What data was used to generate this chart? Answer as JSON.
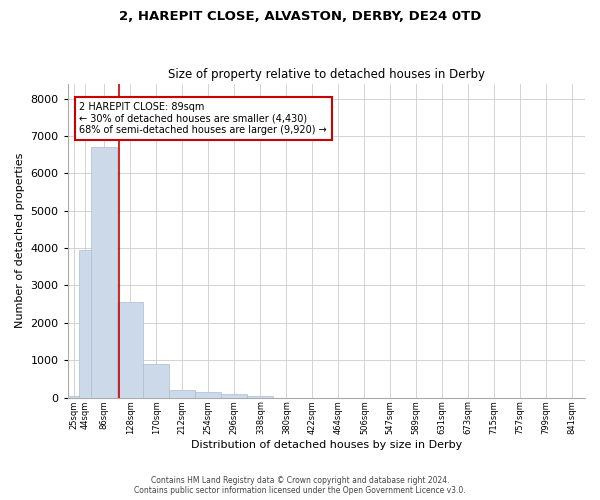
{
  "title_line1": "2, HAREPIT CLOSE, ALVASTON, DERBY, DE24 0TD",
  "title_line2": "Size of property relative to detached houses in Derby",
  "xlabel": "Distribution of detached houses by size in Derby",
  "ylabel": "Number of detached properties",
  "footer_line1": "Contains HM Land Registry data © Crown copyright and database right 2024.",
  "footer_line2": "Contains public sector information licensed under the Open Government Licence v3.0.",
  "annotation_title": "2 HAREPIT CLOSE: 89sqm",
  "annotation_line1": "← 30% of detached houses are smaller (4,430)",
  "annotation_line2": "68% of semi-detached houses are larger (9,920) →",
  "property_size": 89,
  "bar_color": "#ccd9e8",
  "bar_edge_color": "#a8bfd4",
  "vline_color": "#cc0000",
  "annotation_box_color": "#cc0000",
  "grid_color": "#cccccc",
  "background_color": "#ffffff",
  "categories": [
    "25sqm",
    "44sqm",
    "86sqm",
    "128sqm",
    "170sqm",
    "212sqm",
    "254sqm",
    "296sqm",
    "338sqm",
    "380sqm",
    "422sqm",
    "464sqm",
    "506sqm",
    "547sqm",
    "589sqm",
    "631sqm",
    "673sqm",
    "715sqm",
    "757sqm",
    "799sqm",
    "841sqm"
  ],
  "bin_edges": [
    6,
    25,
    44,
    86,
    128,
    170,
    212,
    254,
    296,
    338,
    380,
    422,
    464,
    506,
    547,
    589,
    631,
    673,
    715,
    757,
    799,
    841
  ],
  "values": [
    50,
    3950,
    6700,
    2550,
    900,
    200,
    150,
    100,
    50,
    0,
    0,
    0,
    0,
    0,
    0,
    0,
    0,
    0,
    0,
    0,
    0
  ],
  "ylim": [
    0,
    8400
  ],
  "yticks": [
    0,
    1000,
    2000,
    3000,
    4000,
    5000,
    6000,
    7000,
    8000
  ]
}
